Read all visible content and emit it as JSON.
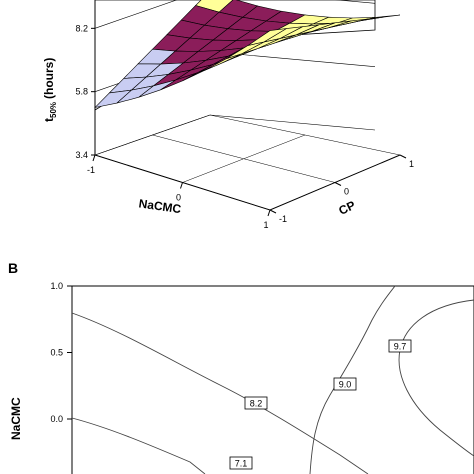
{
  "panel_b_label": "B",
  "chart_data": [
    {
      "type": "surface",
      "panel": "A",
      "zlabel_main": "t",
      "zlabel_sub": "50%",
      "zlabel_unit": "(hours)",
      "xlabel": "NaCMC",
      "ylabel": "CP",
      "z_ticks": [
        "3.4",
        "5.8",
        "8.2"
      ],
      "x_ticks": [
        "-1",
        "0",
        "1"
      ],
      "y_ticks": [
        "-1",
        "0",
        "1"
      ],
      "zlim": [
        3.4,
        10.6
      ],
      "xlim": [
        -1,
        1
      ],
      "ylim": [
        -1,
        1
      ],
      "grid": true,
      "surface_colors": [
        "#c9cdf2",
        "#8b1d5a",
        "#ffff99"
      ]
    },
    {
      "type": "contour",
      "panel": "B",
      "xlabel": "",
      "ylabel": "NaCMC",
      "y_ticks": [
        "1.0",
        "0.5",
        "0.0"
      ],
      "xlim": [
        -1,
        1
      ],
      "ylim": [
        -1,
        1
      ],
      "levels": [
        {
          "label": "7.1",
          "value": 7.1
        },
        {
          "label": "8.2",
          "value": 8.2
        },
        {
          "label": "9.0",
          "value": 9.0
        },
        {
          "label": "9.7",
          "value": 9.7
        }
      ]
    }
  ]
}
